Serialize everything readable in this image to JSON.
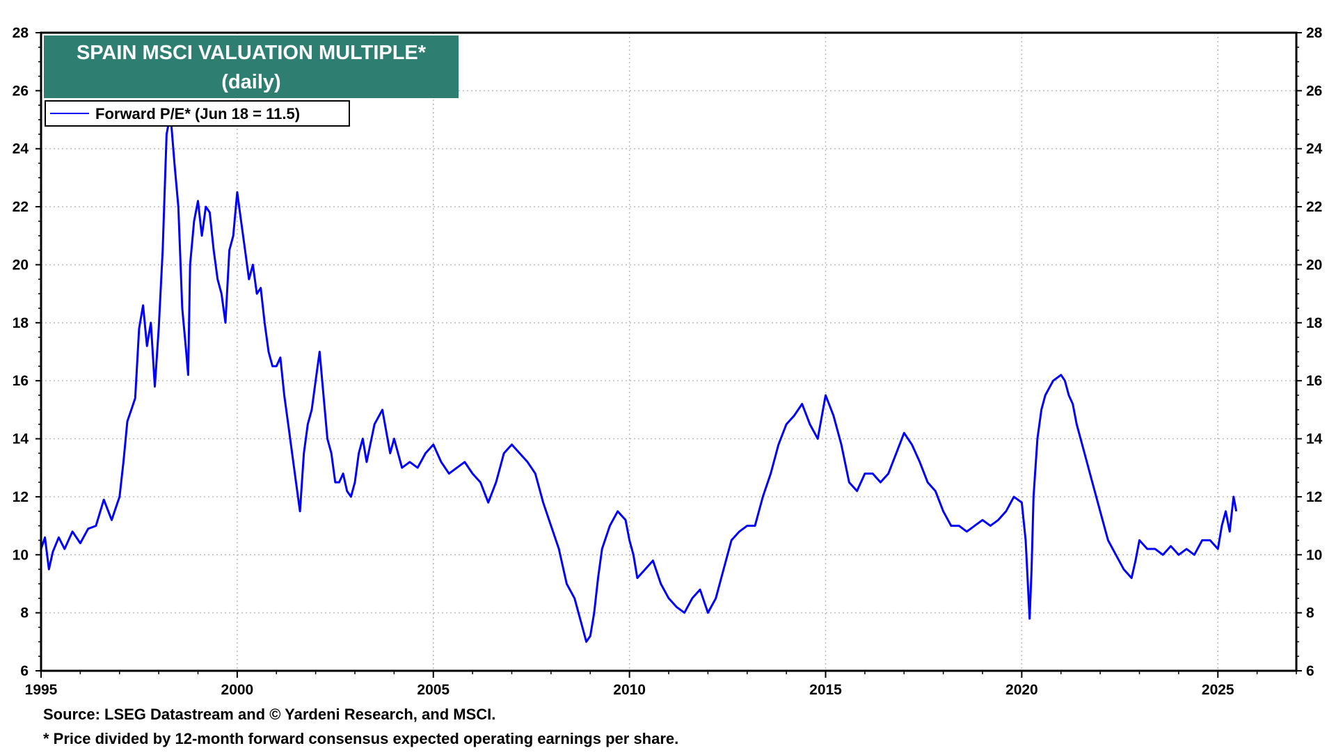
{
  "chart_data": {
    "type": "line",
    "title": "SPAIN MSCI VALUATION MULTIPLE*",
    "subtitle": "(daily)",
    "xlim": [
      1995,
      2027
    ],
    "ylim": [
      6,
      28
    ],
    "x_ticks": [
      "1995",
      "2000",
      "2005",
      "2010",
      "2015",
      "2020",
      "2025"
    ],
    "y_ticks": [
      "6",
      "8",
      "10",
      "12",
      "14",
      "16",
      "18",
      "20",
      "22",
      "24",
      "26",
      "28"
    ],
    "grid": true,
    "legend_position": "top-left",
    "series": [
      {
        "name": "Forward P/E* (Jun 18 = 11.5)",
        "color": "#0000ff",
        "x": [
          1995.0,
          1995.1,
          1995.2,
          1995.3,
          1995.45,
          1995.6,
          1995.8,
          1996.0,
          1996.2,
          1996.4,
          1996.6,
          1996.8,
          1996.9,
          1997.0,
          1997.1,
          1997.2,
          1997.3,
          1997.4,
          1997.5,
          1997.6,
          1997.7,
          1997.8,
          1997.9,
          1998.0,
          1998.1,
          1998.2,
          1998.3,
          1998.4,
          1998.5,
          1998.6,
          1998.7,
          1998.75,
          1998.8,
          1998.9,
          1999.0,
          1999.1,
          1999.2,
          1999.3,
          1999.4,
          1999.5,
          1999.6,
          1999.7,
          1999.8,
          1999.9,
          2000.0,
          2000.1,
          2000.2,
          2000.3,
          2000.4,
          2000.5,
          2000.6,
          2000.7,
          2000.8,
          2000.9,
          2001.0,
          2001.1,
          2001.2,
          2001.3,
          2001.4,
          2001.5,
          2001.6,
          2001.7,
          2001.8,
          2001.9,
          2002.0,
          2002.1,
          2002.2,
          2002.3,
          2002.4,
          2002.5,
          2002.6,
          2002.7,
          2002.8,
          2002.9,
          2003.0,
          2003.1,
          2003.2,
          2003.3,
          2003.5,
          2003.7,
          2003.9,
          2004.0,
          2004.2,
          2004.4,
          2004.6,
          2004.8,
          2005.0,
          2005.2,
          2005.4,
          2005.6,
          2005.8,
          2006.0,
          2006.2,
          2006.4,
          2006.6,
          2006.8,
          2007.0,
          2007.2,
          2007.4,
          2007.6,
          2007.8,
          2008.0,
          2008.2,
          2008.4,
          2008.6,
          2008.8,
          2008.9,
          2009.0,
          2009.1,
          2009.2,
          2009.3,
          2009.5,
          2009.7,
          2009.9,
          2010.0,
          2010.1,
          2010.2,
          2010.4,
          2010.6,
          2010.8,
          2011.0,
          2011.2,
          2011.4,
          2011.6,
          2011.8,
          2012.0,
          2012.2,
          2012.4,
          2012.6,
          2012.8,
          2013.0,
          2013.2,
          2013.4,
          2013.6,
          2013.8,
          2014.0,
          2014.2,
          2014.4,
          2014.6,
          2014.8,
          2015.0,
          2015.2,
          2015.4,
          2015.6,
          2015.8,
          2016.0,
          2016.2,
          2016.4,
          2016.6,
          2016.8,
          2017.0,
          2017.2,
          2017.4,
          2017.6,
          2017.8,
          2018.0,
          2018.2,
          2018.4,
          2018.6,
          2018.8,
          2019.0,
          2019.2,
          2019.4,
          2019.6,
          2019.8,
          2020.0,
          2020.1,
          2020.2,
          2020.25,
          2020.3,
          2020.4,
          2020.5,
          2020.6,
          2020.8,
          2021.0,
          2021.1,
          2021.2,
          2021.3,
          2021.4,
          2021.6,
          2021.8,
          2022.0,
          2022.2,
          2022.4,
          2022.6,
          2022.8,
          2022.9,
          2023.0,
          2023.2,
          2023.4,
          2023.6,
          2023.8,
          2024.0,
          2024.2,
          2024.4,
          2024.6,
          2024.8,
          2025.0,
          2025.1,
          2025.2,
          2025.3,
          2025.4,
          2025.47
        ],
        "y": [
          10.2,
          10.6,
          9.5,
          10.1,
          10.6,
          10.2,
          10.8,
          10.4,
          10.9,
          11.0,
          11.9,
          11.2,
          11.6,
          12.0,
          13.2,
          14.6,
          15.0,
          15.4,
          17.8,
          18.6,
          17.2,
          18.0,
          15.8,
          17.8,
          20.5,
          24.5,
          25.2,
          23.5,
          22.0,
          18.5,
          17.0,
          16.2,
          20.0,
          21.5,
          22.2,
          21.0,
          22.0,
          21.8,
          20.5,
          19.5,
          19.0,
          18.0,
          20.5,
          21.0,
          22.5,
          21.5,
          20.5,
          19.5,
          20.0,
          19.0,
          19.2,
          18.0,
          17.0,
          16.5,
          16.5,
          16.8,
          15.5,
          14.5,
          13.5,
          12.5,
          11.5,
          13.5,
          14.5,
          15.0,
          16.0,
          17.0,
          15.5,
          14.0,
          13.5,
          12.5,
          12.5,
          12.8,
          12.2,
          12.0,
          12.5,
          13.5,
          14.0,
          13.2,
          14.5,
          15.0,
          13.5,
          14.0,
          13.0,
          13.2,
          13.0,
          13.5,
          13.8,
          13.2,
          12.8,
          13.0,
          13.2,
          12.8,
          12.5,
          11.8,
          12.5,
          13.5,
          13.8,
          13.5,
          13.2,
          12.8,
          11.8,
          11.0,
          10.2,
          9.0,
          8.5,
          7.5,
          7.0,
          7.2,
          8.0,
          9.2,
          10.2,
          11.0,
          11.5,
          11.2,
          10.5,
          10.0,
          9.2,
          9.5,
          9.8,
          9.0,
          8.5,
          8.2,
          8.0,
          8.5,
          8.8,
          8.0,
          8.5,
          9.5,
          10.5,
          10.8,
          11.0,
          11.0,
          12.0,
          12.8,
          13.8,
          14.5,
          14.8,
          15.2,
          14.5,
          14.0,
          15.5,
          14.8,
          13.8,
          12.5,
          12.2,
          12.8,
          12.8,
          12.5,
          12.8,
          13.5,
          14.2,
          13.8,
          13.2,
          12.5,
          12.2,
          11.5,
          11.0,
          11.0,
          10.8,
          11.0,
          11.2,
          11.0,
          11.2,
          11.5,
          12.0,
          11.8,
          10.5,
          7.8,
          9.5,
          12.0,
          14.0,
          15.0,
          15.5,
          16.0,
          16.2,
          16.0,
          15.5,
          15.2,
          14.5,
          13.5,
          12.5,
          11.5,
          10.5,
          10.0,
          9.5,
          9.2,
          9.8,
          10.5,
          10.2,
          10.2,
          10.0,
          10.3,
          10.0,
          10.2,
          10.0,
          10.5,
          10.5,
          10.2,
          11.0,
          11.5,
          10.8,
          12.0,
          11.5
        ]
      }
    ],
    "legend": {
      "entry": "Forward P/E* (Jun 18 = 11.5)"
    },
    "footnotes": {
      "source": "Source: LSEG Datastream and © Yardeni Research, and MSCI.",
      "note": "* Price divided by 12-month forward consensus expected operating earnings per share."
    },
    "colors": {
      "title_box": "#2e7f72",
      "line": "#0000ff",
      "grid": "#bbbbbb"
    }
  }
}
